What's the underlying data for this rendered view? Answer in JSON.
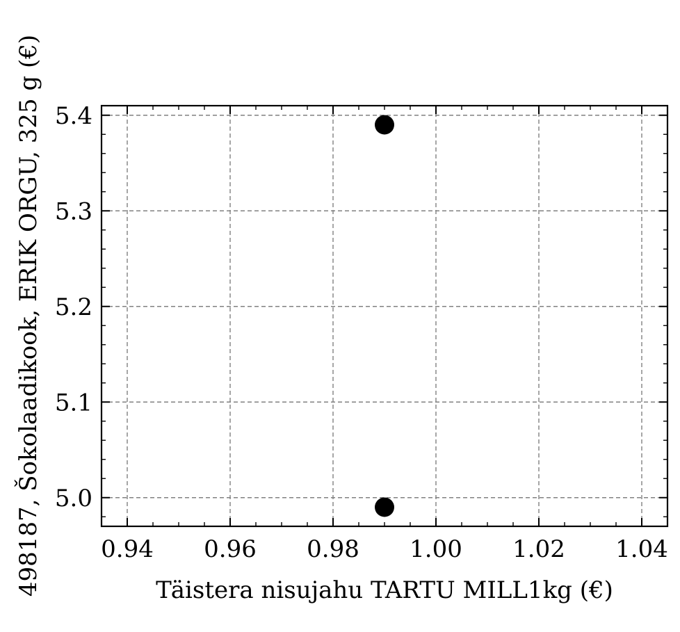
{
  "chart_data": {
    "type": "scatter",
    "xlabel": "Täistera nisujahu TARTU MILL1kg (€)",
    "ylabel": "498187, Šokolaadikook, ERIK ORGU, 325 g (€)",
    "xlim": [
      0.935,
      1.045
    ],
    "ylim": [
      4.97,
      5.41
    ],
    "x_ticks": [
      "0.94",
      "0.96",
      "0.98",
      "1.00",
      "1.02",
      "1.04"
    ],
    "y_ticks": [
      "5.0",
      "5.1",
      "5.2",
      "5.3",
      "5.4"
    ],
    "grid": true,
    "points": [
      {
        "x": 0.99,
        "y": 5.39
      },
      {
        "x": 0.99,
        "y": 4.99
      }
    ],
    "marker_color": "#000000"
  }
}
